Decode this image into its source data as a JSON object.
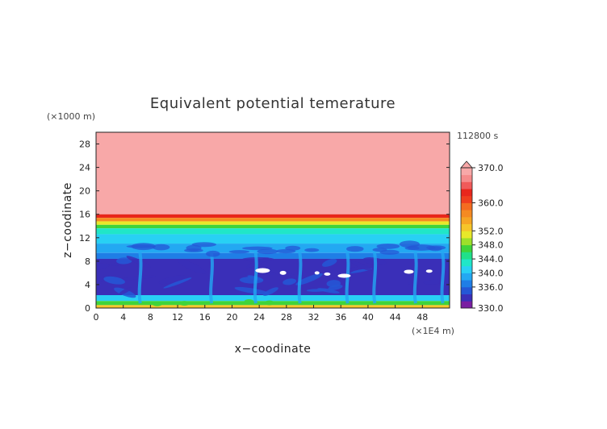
{
  "chart_data": {
    "type": "heatmap",
    "title": "Equivalent potential temerature",
    "xlabel": "x−coodinate",
    "ylabel": "z−coodinate",
    "x_unit": "(×1E4 m)",
    "y_unit": "(×1000 m)",
    "time_label": "112800 s",
    "xlim": [
      0,
      52
    ],
    "ylim": [
      0,
      30
    ],
    "x_ticks": [
      0,
      4,
      8,
      12,
      16,
      20,
      24,
      28,
      32,
      36,
      40,
      44,
      48
    ],
    "y_ticks": [
      0,
      4,
      8,
      12,
      16,
      20,
      24,
      28
    ],
    "colorbar": {
      "levels": [
        330,
        332,
        334,
        336,
        338,
        340,
        342,
        344,
        346,
        348,
        350,
        352,
        354,
        356,
        358,
        360,
        362,
        364,
        366,
        368,
        370
      ],
      "tick_labels": [
        "330.0",
        "336.0",
        "340.0",
        "344.0",
        "348.0",
        "352.0",
        "360.0",
        "370.0"
      ],
      "tick_values": [
        330,
        336,
        340,
        344,
        348,
        352,
        360,
        370
      ],
      "colors": [
        "#7a1fa2",
        "#3a2fb8",
        "#2457d6",
        "#1f7ee6",
        "#23a8f2",
        "#28d0f4",
        "#20e6c8",
        "#20e08a",
        "#3fd43a",
        "#9de02a",
        "#e8e82a",
        "#f6c52a",
        "#f6a524",
        "#f58a22",
        "#f46c20",
        "#ef3e1e",
        "#e8261c",
        "#f05a5a",
        "#f58b8b",
        "#f8a8a8"
      ],
      "extend": "max"
    },
    "layers": [
      {
        "z_range": [
          16,
          30
        ],
        "theta_e": 368
      },
      {
        "z_range": [
          15.4,
          16
        ],
        "theta_e": 362
      },
      {
        "z_range": [
          14.8,
          15.4
        ],
        "theta_e": 356
      },
      {
        "z_range": [
          14.2,
          14.8
        ],
        "theta_e": 350
      },
      {
        "z_range": [
          13.6,
          14.2
        ],
        "theta_e": 346
      },
      {
        "z_range": [
          12.6,
          13.6
        ],
        "theta_e": 342
      },
      {
        "z_range": [
          11,
          12.6
        ],
        "theta_e": 340
      },
      {
        "z_range": [
          9.4,
          11
        ],
        "theta_e": 338
      },
      {
        "z_range": [
          8.4,
          9.4
        ],
        "theta_e": 336
      },
      {
        "z_range": [
          2.2,
          8.4
        ],
        "theta_e": 332
      },
      {
        "z_range": [
          1.2,
          2.2
        ],
        "theta_e": 340
      },
      {
        "z_range": [
          0.5,
          1.2
        ],
        "theta_e": 346
      },
      {
        "z_range": [
          0,
          0.5
        ],
        "theta_e": 352
      }
    ]
  }
}
